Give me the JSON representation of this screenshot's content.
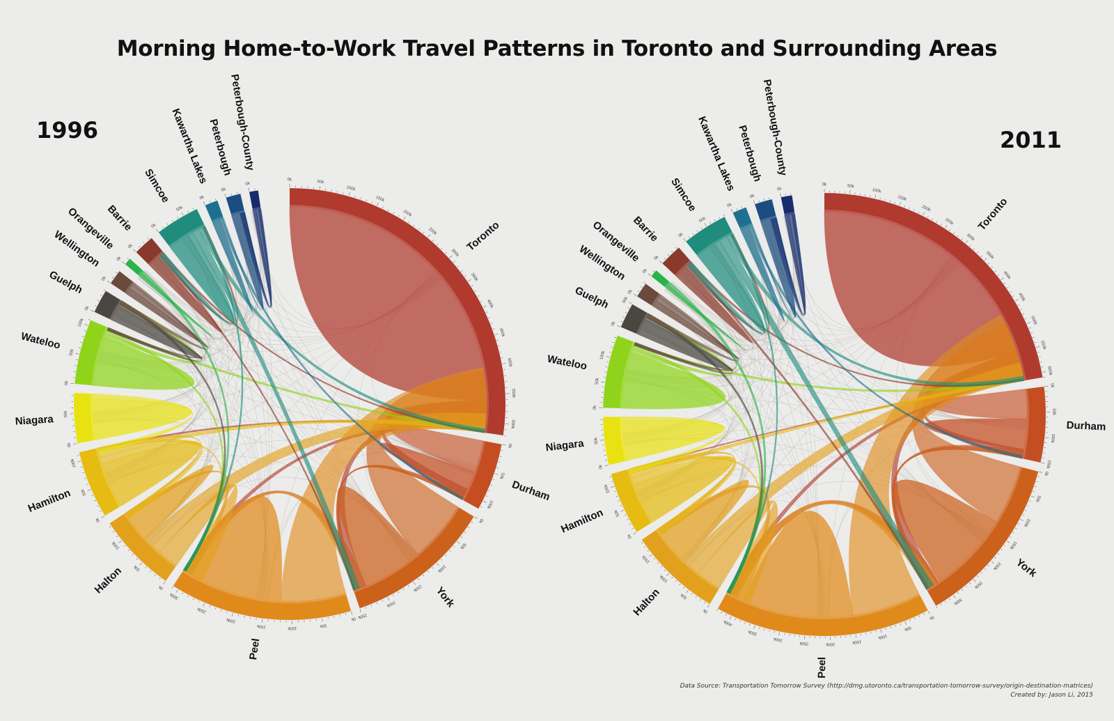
{
  "title": "Morning Home-to-Work Travel Patterns in Toronto and Surrounding Areas",
  "footer": {
    "source": "Data Source: Transportation Tomorrow Survey (http://dmg.utoronto.ca/transportation-tomorrow-survey/origin-destination-matrices)",
    "credit": "Created by: Jason Li, 2015"
  },
  "chart_data": [
    {
      "type": "chord",
      "title": "1996",
      "unit": "k",
      "regions": [
        {
          "name": "Toronto",
          "total": 620,
          "color": "#b03a2e",
          "flows": {
            "Toronto": 560,
            "Durham": 22,
            "York": 24,
            "Peel": 10,
            "Hamilton": 4
          }
        },
        {
          "name": "Durham",
          "total": 115,
          "color": "#c44d22",
          "flows": {
            "Toronto": 60,
            "Durham": 45,
            "York": 10
          }
        },
        {
          "name": "York",
          "total": 250,
          "color": "#cc611c",
          "flows": {
            "Toronto": 115,
            "York": 110,
            "Peel": 18,
            "Durham": 7
          }
        },
        {
          "name": "Peel",
          "total": 310,
          "color": "#e08a1b",
          "flows": {
            "Toronto": 120,
            "Peel": 170,
            "Halton": 10,
            "York": 10
          }
        },
        {
          "name": "Halton",
          "total": 135,
          "color": "#e3a01c",
          "flows": {
            "Peel": 40,
            "Toronto": 35,
            "Halton": 55,
            "Hamilton": 5
          }
        },
        {
          "name": "Hamilton",
          "total": 115,
          "color": "#e6bb12",
          "flows": {
            "Hamilton": 85,
            "Halton": 12,
            "Toronto": 10,
            "Peel": 8
          }
        },
        {
          "name": "Niagara",
          "total": 85,
          "color": "#e9e212",
          "flows": {
            "Niagara": 75,
            "Hamilton": 10
          }
        },
        {
          "name": "Wateloo",
          "total": 110,
          "color": "#8fd41a",
          "flows": {
            "Wateloo": 90,
            "Guelph": 8,
            "Peel": 6,
            "Toronto": 6
          }
        },
        {
          "name": "Guelph",
          "total": 40,
          "color": "#4a4640",
          "flows": {
            "Guelph": 28,
            "Wateloo": 6,
            "Peel": 6
          }
        },
        {
          "name": "Wellington",
          "total": 25,
          "color": "#6b4a3e",
          "flows": {
            "Wellington": 12,
            "Guelph": 8,
            "Wateloo": 5
          }
        },
        {
          "name": "Orangeville",
          "total": 12,
          "color": "#2ab34a",
          "flows": {
            "Orangeville": 6,
            "Peel": 6
          }
        },
        {
          "name": "Barrie",
          "total": 35,
          "color": "#8a3a2c",
          "flows": {
            "Barrie": 22,
            "Simcoe": 5,
            "York": 4,
            "Toronto": 4
          }
        },
        {
          "name": "Simcoe",
          "total": 75,
          "color": "#1f8c7e",
          "flows": {
            "Simcoe": 40,
            "Barrie": 10,
            "York": 12,
            "Toronto": 8,
            "Peel": 5
          }
        },
        {
          "name": "Kawartha Lakes",
          "total": 22,
          "color": "#1e7090",
          "flows": {
            "Kawartha Lakes": 14,
            "Durham": 5,
            "Peterbough": 3
          }
        },
        {
          "name": "Peterbough",
          "total": 25,
          "color": "#1a4e80",
          "flows": {
            "Peterbough": 20,
            "Peterbough-County": 5
          }
        },
        {
          "name": "Peterbough-County",
          "total": 15,
          "color": "#182c6c",
          "flows": {
            "Peterbough-County": 6,
            "Peterbough": 9
          }
        }
      ]
    },
    {
      "type": "chord",
      "title": "2011",
      "unit": "k",
      "regions": [
        {
          "name": "Toronto",
          "total": 610,
          "color": "#b03a2e",
          "flows": {
            "Toronto": 545,
            "Durham": 20,
            "York": 30,
            "Peel": 12,
            "Hamilton": 3
          }
        },
        {
          "name": "Durham",
          "total": 150,
          "color": "#c44d22",
          "flows": {
            "Toronto": 65,
            "Durham": 70,
            "York": 15
          }
        },
        {
          "name": "York",
          "total": 340,
          "color": "#cc611c",
          "flows": {
            "Toronto": 130,
            "York": 175,
            "Peel": 25,
            "Durham": 10
          }
        },
        {
          "name": "Peel",
          "total": 430,
          "color": "#e08a1b",
          "flows": {
            "Toronto": 150,
            "Peel": 240,
            "Halton": 15,
            "York": 25
          }
        },
        {
          "name": "Halton",
          "total": 185,
          "color": "#e3a01c",
          "flows": {
            "Peel": 55,
            "Toronto": 40,
            "Halton": 80,
            "Hamilton": 10
          }
        },
        {
          "name": "Hamilton",
          "total": 125,
          "color": "#e6bb12",
          "flows": {
            "Hamilton": 90,
            "Halton": 15,
            "Toronto": 10,
            "Peel": 10
          }
        },
        {
          "name": "Niagara",
          "total": 95,
          "color": "#e9e212",
          "flows": {
            "Niagara": 85,
            "Hamilton": 10
          }
        },
        {
          "name": "Wateloo",
          "total": 145,
          "color": "#8fd41a",
          "flows": {
            "Wateloo": 120,
            "Guelph": 10,
            "Peel": 8,
            "Toronto": 7
          }
        },
        {
          "name": "Guelph",
          "total": 50,
          "color": "#4a4640",
          "flows": {
            "Guelph": 35,
            "Wateloo": 7,
            "Peel": 8
          }
        },
        {
          "name": "Wellington",
          "total": 30,
          "color": "#6b4a3e",
          "flows": {
            "Wellington": 14,
            "Guelph": 10,
            "Wateloo": 6
          }
        },
        {
          "name": "Orangeville",
          "total": 15,
          "color": "#2ab34a",
          "flows": {
            "Orangeville": 7,
            "Peel": 8
          }
        },
        {
          "name": "Barrie",
          "total": 45,
          "color": "#8a3a2c",
          "flows": {
            "Barrie": 28,
            "Simcoe": 6,
            "York": 6,
            "Toronto": 5
          }
        },
        {
          "name": "Simcoe",
          "total": 90,
          "color": "#1f8c7e",
          "flows": {
            "Simcoe": 45,
            "Barrie": 12,
            "York": 18,
            "Toronto": 10,
            "Peel": 5
          }
        },
        {
          "name": "Kawartha Lakes",
          "total": 28,
          "color": "#1e7090",
          "flows": {
            "Kawartha Lakes": 18,
            "Durham": 6,
            "Peterbough": 4
          }
        },
        {
          "name": "Peterbough",
          "total": 35,
          "color": "#1a4e80",
          "flows": {
            "Peterbough": 28,
            "Peterbough-County": 7
          }
        },
        {
          "name": "Peterbough-County",
          "total": 22,
          "color": "#182c6c",
          "flows": {
            "Peterbough-County": 9,
            "Peterbough": 13
          }
        }
      ]
    }
  ]
}
